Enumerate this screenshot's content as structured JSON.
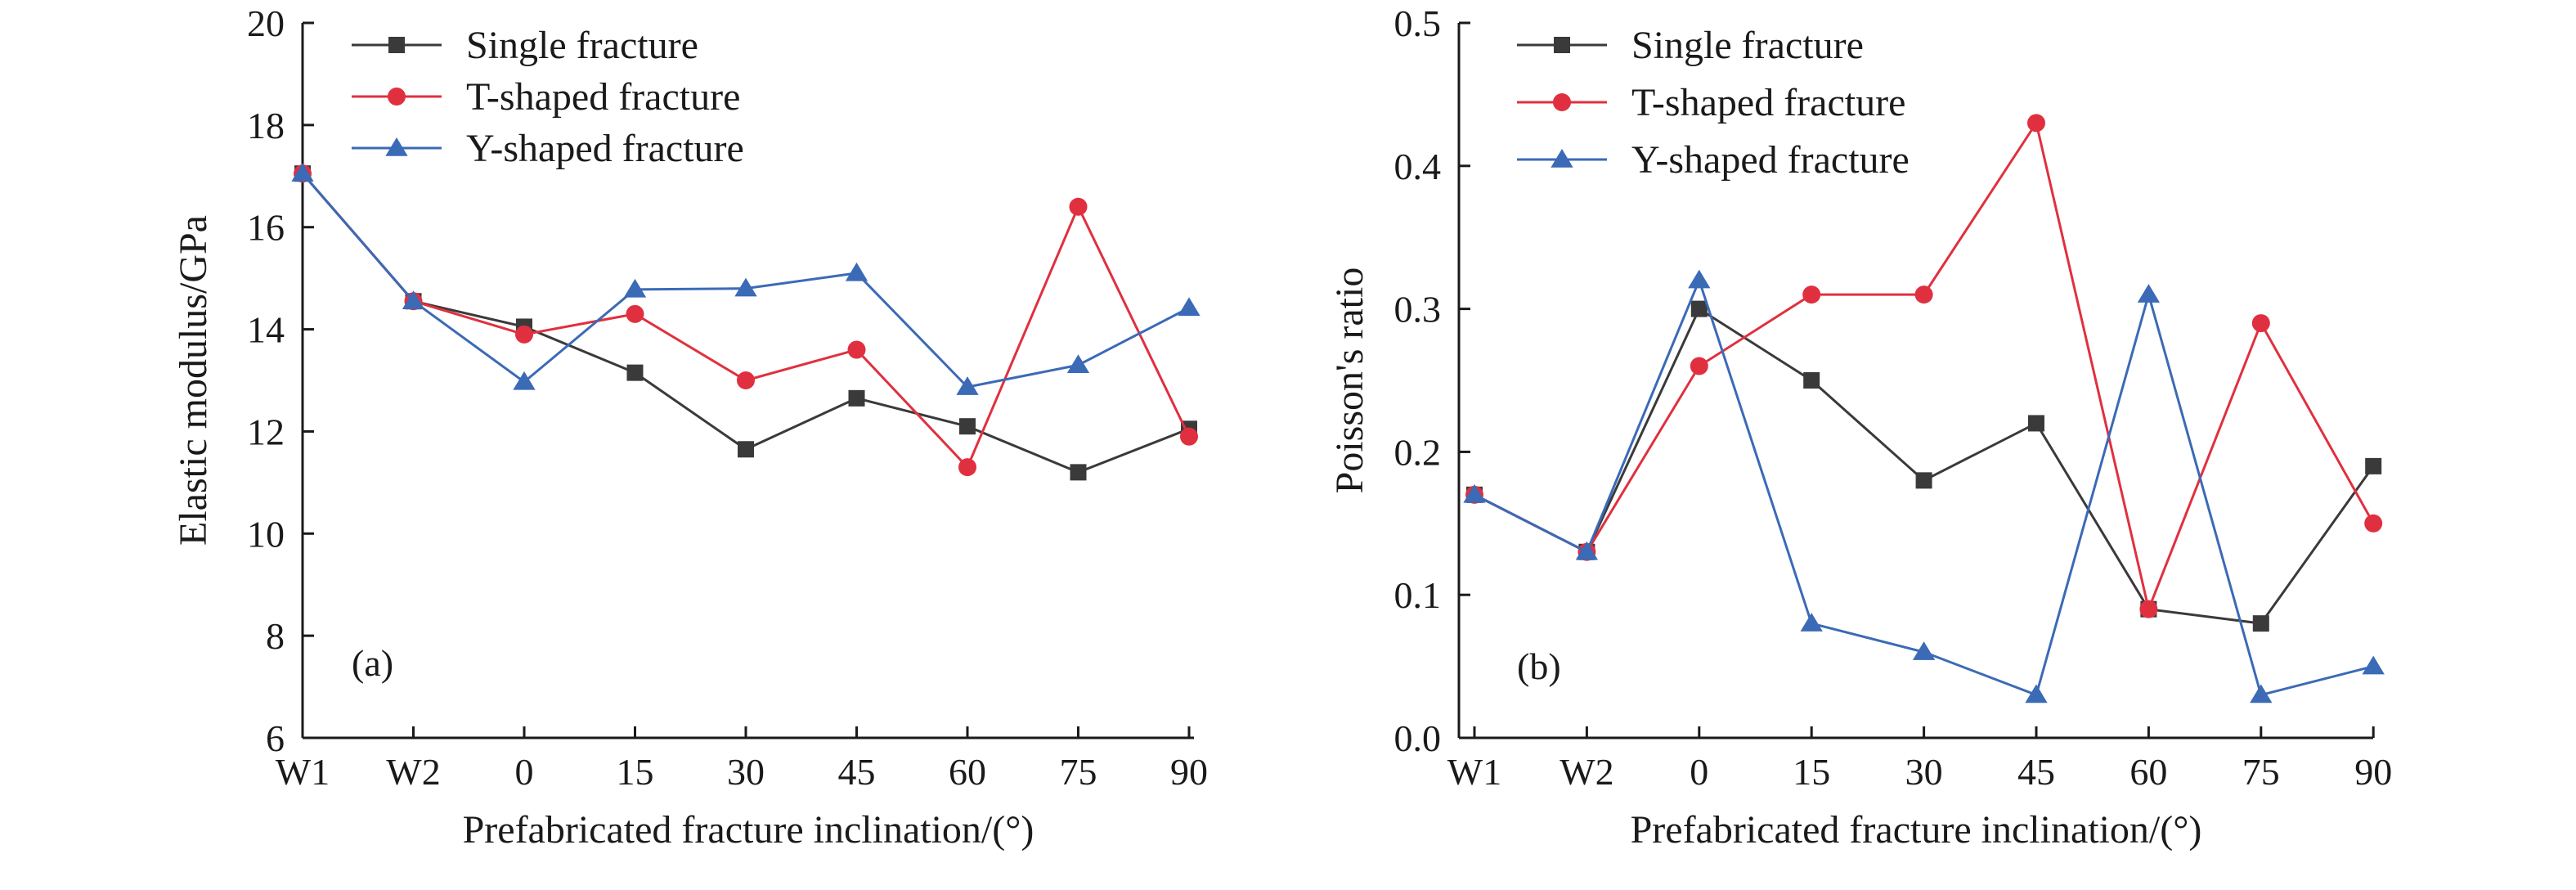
{
  "chart_data": [
    {
      "type": "line",
      "panel_label": "(a)",
      "categories": [
        "W1",
        "W2",
        "0",
        "15",
        "30",
        "45",
        "60",
        "75",
        "90"
      ],
      "xlabel": "Prefabricated  fracture inclination/(°)",
      "ylabel": "Elastic modulus/GPa",
      "ylim": [
        6,
        20
      ],
      "yticks": [
        "6",
        "8",
        "10",
        "12",
        "14",
        "16",
        "18",
        "20"
      ],
      "grid": false,
      "legend": "top-left",
      "series": [
        {
          "name": "Single fracture",
          "marker": "square",
          "color": "#3a3a3a",
          "values": [
            17.05,
            14.55,
            14.05,
            13.15,
            11.65,
            12.65,
            12.1,
            11.2,
            12.05
          ]
        },
        {
          "name": "T-shaped fracture",
          "marker": "circle",
          "color": "#e0303f",
          "values": [
            17.05,
            14.55,
            13.9,
            14.3,
            13.0,
            13.6,
            11.3,
            16.4,
            11.9
          ]
        },
        {
          "name": "Y-shaped fracture",
          "marker": "triangle",
          "color": "#3b6ab6",
          "values": [
            17.05,
            14.55,
            12.97,
            14.78,
            14.8,
            15.1,
            12.87,
            13.3,
            14.42
          ]
        }
      ]
    },
    {
      "type": "line",
      "panel_label": "(b)",
      "categories": [
        "W1",
        "W2",
        "0",
        "15",
        "30",
        "45",
        "60",
        "75",
        "90"
      ],
      "xlabel": "Prefabricated  fracture inclination/(°)",
      "ylabel": "Poisson's ratio",
      "ylim": [
        0,
        0.5
      ],
      "yticks": [
        "0.0",
        "0.1",
        "0.2",
        "0.3",
        "0.4",
        "0.5"
      ],
      "grid": false,
      "legend": "top-left",
      "series": [
        {
          "name": "Single fracture",
          "marker": "square",
          "color": "#3a3a3a",
          "values": [
            0.17,
            0.13,
            0.3,
            0.25,
            0.18,
            0.22,
            0.09,
            0.08,
            0.19
          ]
        },
        {
          "name": "T-shaped fracture",
          "marker": "circle",
          "color": "#e0303f",
          "values": [
            0.17,
            0.13,
            0.26,
            0.31,
            0.31,
            0.43,
            0.09,
            0.29,
            0.15
          ]
        },
        {
          "name": "Y-shaped fracture",
          "marker": "triangle",
          "color": "#3b6ab6",
          "values": [
            0.17,
            0.13,
            0.32,
            0.08,
            0.06,
            0.03,
            0.31,
            0.03,
            0.05
          ]
        }
      ]
    }
  ]
}
